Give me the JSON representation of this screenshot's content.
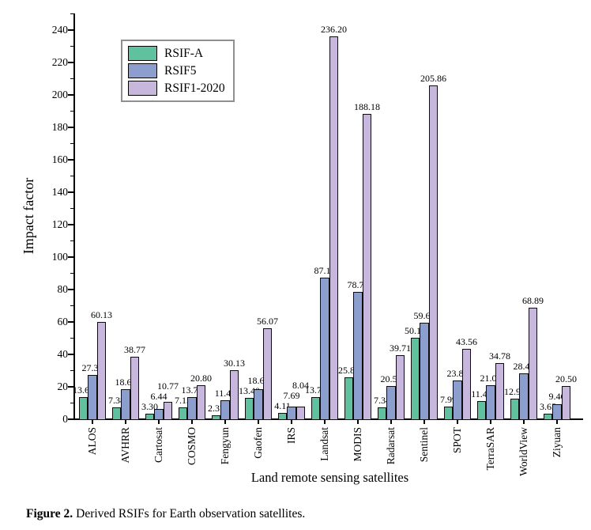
{
  "figure": {
    "caption_label": "Figure 2.",
    "caption_text": "Derived RSIFs for Earth observation satellites."
  },
  "chart_data": {
    "type": "bar",
    "title": "",
    "xlabel": "Land remote sensing satellites",
    "ylabel": "Impact factor",
    "ylim": [
      0,
      250
    ],
    "yticks": {
      "min": 0,
      "max": 240,
      "major_step": 20,
      "minor_step": 10
    },
    "grid": false,
    "legend_position": "upper-left",
    "background": "#ffffff",
    "axis_color": "#000000",
    "value_label_decimals": 2,
    "categories": [
      "ALOS",
      "AVHRR",
      "Cartosat",
      "COSMO",
      "Fengyun",
      "Gaofen",
      "IRS",
      "Landsat",
      "MODIS",
      "Radarsat",
      "Sentinel",
      "SPOT",
      "TerraSAR",
      "WorldView",
      "Ziyuan"
    ],
    "series": [
      {
        "name": "RSIF-A",
        "color": "#60C19E",
        "values": [
          13.61,
          7.38,
          3.3,
          7.15,
          2.37,
          13.4,
          4.11,
          13.75,
          25.82,
          7.34,
          50.16,
          7.99,
          11.4,
          12.9,
          3.65
        ]
      },
      {
        "name": "RSIF5",
        "color": "#8C9ECE",
        "values": [
          27.3,
          18.65,
          6.44,
          13.77,
          11.49,
          18.6,
          7.69,
          87.14,
          78.71,
          20.54,
          59.69,
          23.84,
          21.01,
          28.41,
          9.46
        ]
      },
      {
        "name": "RSIF1-2020",
        "color": "#C8B7DC",
        "values": [
          60.13,
          38.77,
          10.77,
          20.8,
          30.13,
          56.07,
          8.04,
          236.2,
          188.18,
          39.71,
          205.86,
          43.56,
          34.78,
          68.89,
          20.5
        ]
      }
    ]
  }
}
